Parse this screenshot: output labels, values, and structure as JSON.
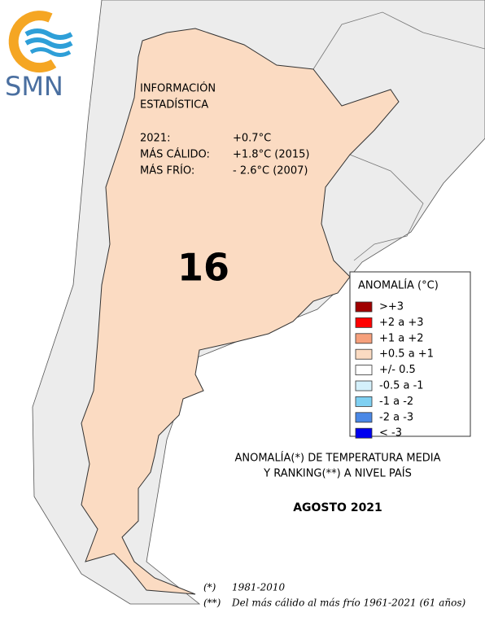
{
  "logo": {
    "text": "SMN"
  },
  "info": {
    "title_lines": [
      "INFORMACIÓN",
      "ESTADÍSTICA"
    ],
    "rows": [
      [
        "2021:",
        "+0.7°C"
      ],
      [
        "MÁS CÁLIDO:",
        "+1.8°C (2015)"
      ],
      [
        "MÁS FRÍO:",
        "- 2.6°C (2007)"
      ]
    ]
  },
  "ranking": "16",
  "legend": {
    "title": "ANOMALÍA (°C)",
    "items": [
      {
        "label": ">+3",
        "color": "#a00000"
      },
      {
        "label": "+2 a +3",
        "color": "#ff0000"
      },
      {
        "label": "+1 a +2",
        "color": "#f6a07c"
      },
      {
        "label": "+0.5 a +1",
        "color": "#fbdbc2"
      },
      {
        "label": "+/- 0.5",
        "color": "#ffffff"
      },
      {
        "label": "-0.5 a -1",
        "color": "#d4f0fb"
      },
      {
        "label": "-1 a -2",
        "color": "#7fd0f2"
      },
      {
        "label": "-2 a -3",
        "color": "#4a88e6"
      },
      {
        "label": "< -3",
        "color": "#0000f0"
      }
    ]
  },
  "caption": {
    "lines": [
      "ANOMALÍA(*) DE TEMPERATURA MEDIA",
      "Y RANKING(**) A NIVEL PAÍS"
    ],
    "period": "AGOSTO 2021"
  },
  "footnotes": [
    [
      "(*)",
      "1981-2010"
    ],
    [
      "(**)",
      "Del más cálido al más frío 1961-2021 (61 años)"
    ]
  ]
}
